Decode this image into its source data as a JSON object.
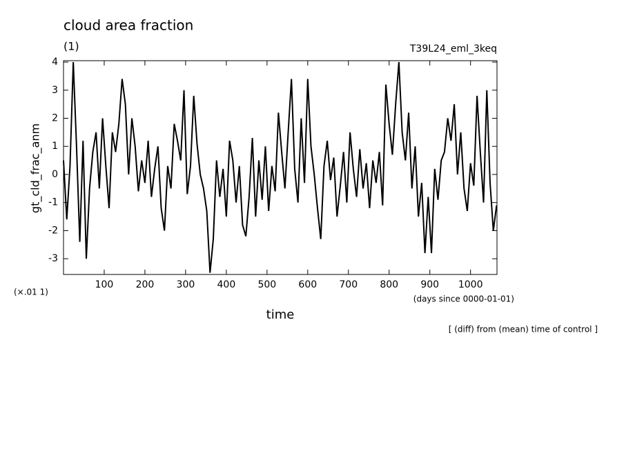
{
  "chart_data": {
    "type": "line",
    "title": "cloud area fraction",
    "subtitle": "(1)",
    "experiment": "T39L24_eml_3keq",
    "y_label": "gt_cld_frac_anm",
    "y_scale_label": "(×.01 1)",
    "x_unit_label": "(days since 0000-01-01)",
    "x_label": "time",
    "note": "[ (diff) from (mean) time of control ]",
    "color": "#000000",
    "xlim": [
      0,
      1065
    ],
    "ylim": [
      -3.56,
      4.05
    ],
    "xticks": [
      100,
      200,
      300,
      400,
      500,
      600,
      700,
      800,
      900,
      1000
    ],
    "yticks": [
      -3,
      -2,
      -1,
      0,
      1,
      2,
      3,
      4
    ],
    "x": [
      0,
      8,
      16,
      24,
      32,
      40,
      48,
      56,
      64,
      72,
      80,
      88,
      96,
      104,
      112,
      120,
      128,
      136,
      144,
      152,
      160,
      168,
      176,
      184,
      192,
      200,
      208,
      216,
      224,
      232,
      240,
      248,
      256,
      264,
      272,
      280,
      288,
      296,
      304,
      312,
      320,
      328,
      336,
      344,
      352,
      360,
      368,
      376,
      384,
      392,
      400,
      408,
      416,
      424,
      432,
      440,
      448,
      456,
      464,
      472,
      480,
      488,
      496,
      504,
      512,
      520,
      528,
      536,
      544,
      552,
      560,
      568,
      576,
      584,
      592,
      600,
      608,
      616,
      624,
      632,
      640,
      648,
      656,
      664,
      672,
      680,
      688,
      696,
      704,
      712,
      720,
      728,
      736,
      744,
      752,
      760,
      768,
      776,
      784,
      792,
      800,
      808,
      816,
      824,
      832,
      840,
      848,
      856,
      864,
      872,
      880,
      888,
      896,
      904,
      912,
      920,
      928,
      936,
      944,
      952,
      960,
      968,
      976,
      984,
      992,
      1000,
      1008,
      1016,
      1024,
      1032,
      1040,
      1048,
      1056,
      1064
    ],
    "values": [
      0.5,
      -1.6,
      0.3,
      4.0,
      1.0,
      -2.4,
      1.2,
      -3.0,
      -0.5,
      0.8,
      1.5,
      -0.5,
      2.0,
      0.3,
      -1.2,
      1.5,
      0.8,
      1.8,
      3.4,
      2.5,
      0.0,
      2.0,
      1.0,
      -0.6,
      0.5,
      -0.3,
      1.2,
      -0.8,
      0.2,
      1.0,
      -1.2,
      -2.0,
      0.3,
      -0.5,
      1.8,
      1.2,
      0.5,
      3.0,
      -0.7,
      0.3,
      2.8,
      1.1,
      0.0,
      -0.5,
      -1.3,
      -3.5,
      -2.3,
      0.5,
      -0.8,
      0.2,
      -1.5,
      1.2,
      0.5,
      -1.0,
      0.3,
      -1.8,
      -2.2,
      -0.8,
      1.3,
      -1.5,
      0.5,
      -0.9,
      1.0,
      -1.3,
      0.3,
      -0.6,
      2.2,
      0.8,
      -0.5,
      1.5,
      3.4,
      0.2,
      -1.0,
      2.0,
      -0.3,
      3.4,
      1.0,
      0.0,
      -1.2,
      -2.3,
      0.3,
      1.2,
      -0.2,
      0.6,
      -1.5,
      -0.4,
      0.8,
      -1.0,
      1.5,
      0.2,
      -0.8,
      0.9,
      -0.5,
      0.4,
      -1.2,
      0.5,
      -0.3,
      0.8,
      -1.1,
      3.2,
      1.8,
      0.7,
      2.5,
      4.0,
      1.5,
      0.5,
      2.2,
      -0.5,
      1.0,
      -1.5,
      -0.3,
      -2.8,
      -0.8,
      -2.8,
      0.2,
      -0.9,
      0.5,
      0.8,
      2.0,
      1.2,
      2.5,
      0.0,
      1.5,
      -0.5,
      -1.3,
      0.4,
      -0.4,
      2.8,
      0.8,
      -1.0,
      3.0,
      -0.3,
      -2.0,
      -1.1
    ]
  }
}
